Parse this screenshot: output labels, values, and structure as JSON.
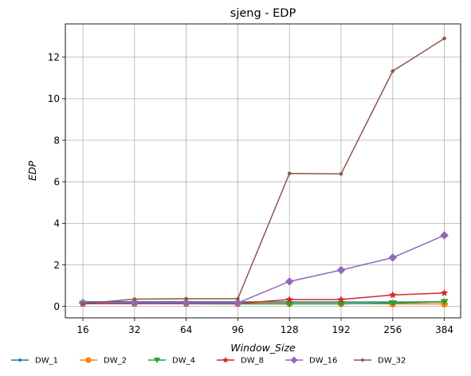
{
  "chart_data": {
    "type": "line",
    "title": "sjeng - EDP",
    "xlabel": "Window_Size",
    "ylabel": "EDP",
    "categories": [
      "16",
      "32",
      "64",
      "96",
      "128",
      "192",
      "256",
      "384"
    ],
    "ylim": [
      -0.55,
      13.6
    ],
    "yticks": [
      0,
      2,
      4,
      6,
      8,
      10,
      12
    ],
    "grid": true,
    "legend_position": "bottom",
    "series": [
      {
        "name": "DW_1",
        "color": "#1f77b4",
        "marker": "point",
        "values": [
          0.22,
          0.22,
          0.22,
          0.22,
          0.21,
          0.21,
          0.21,
          0.22
        ]
      },
      {
        "name": "DW_2",
        "color": "#ff7f0e",
        "marker": "circle",
        "values": [
          0.16,
          0.16,
          0.16,
          0.15,
          0.14,
          0.14,
          0.12,
          0.12
        ]
      },
      {
        "name": "DW_4",
        "color": "#2ca02c",
        "marker": "triangle",
        "values": [
          0.13,
          0.13,
          0.13,
          0.12,
          0.12,
          0.12,
          0.16,
          0.22
        ]
      },
      {
        "name": "DW_8",
        "color": "#d62728",
        "marker": "star",
        "values": [
          0.13,
          0.13,
          0.13,
          0.14,
          0.33,
          0.33,
          0.55,
          0.65
        ]
      },
      {
        "name": "DW_16",
        "color": "#9467bd",
        "marker": "diamond",
        "values": [
          0.17,
          0.17,
          0.17,
          0.17,
          1.2,
          1.75,
          2.35,
          3.42
        ]
      },
      {
        "name": "DW_32",
        "color": "#8c564b",
        "marker": "point",
        "values": [
          0.13,
          0.35,
          0.37,
          0.37,
          6.4,
          6.38,
          11.33,
          12.9
        ]
      }
    ]
  }
}
